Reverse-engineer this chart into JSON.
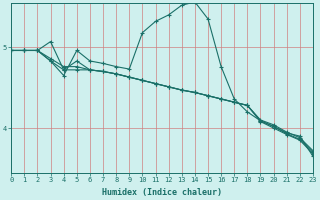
{
  "xlabel": "Humidex (Indice chaleur)",
  "bg_color": "#cff0ee",
  "line_color": "#1a7068",
  "grid_color_v": "#d08080",
  "grid_color_h": "#d08080",
  "x_ticks": [
    0,
    1,
    2,
    3,
    4,
    5,
    6,
    7,
    8,
    9,
    10,
    11,
    12,
    13,
    14,
    15,
    16,
    17,
    18,
    19,
    20,
    21,
    22,
    23
  ],
  "y_ticks": [
    4,
    5
  ],
  "ylim": [
    3.45,
    5.55
  ],
  "xlim": [
    0,
    23
  ],
  "lines": [
    [
      4.96,
      4.96,
      4.96,
      4.83,
      4.72,
      4.72,
      4.72,
      4.7,
      4.67,
      4.63,
      4.59,
      4.55,
      4.51,
      4.47,
      4.44,
      4.4,
      4.36,
      4.32,
      4.28,
      4.1,
      4.04,
      3.95,
      3.88,
      3.72
    ],
    [
      4.96,
      4.96,
      4.96,
      4.86,
      4.76,
      4.76,
      4.72,
      4.7,
      4.67,
      4.63,
      4.59,
      4.55,
      4.51,
      4.47,
      4.44,
      4.4,
      4.36,
      4.32,
      4.28,
      4.09,
      4.02,
      3.93,
      3.86,
      3.7
    ],
    [
      4.96,
      4.96,
      4.96,
      5.07,
      4.72,
      4.83,
      4.72,
      4.7,
      4.67,
      4.63,
      4.59,
      4.55,
      4.51,
      4.47,
      4.44,
      4.4,
      4.36,
      4.32,
      4.28,
      4.08,
      4.0,
      3.92,
      3.85,
      3.68
    ],
    [
      4.96,
      4.96,
      4.96,
      4.83,
      4.65,
      4.96,
      4.83,
      4.8,
      4.76,
      4.73,
      5.18,
      5.32,
      5.4,
      5.52,
      5.56,
      5.35,
      4.76,
      4.36,
      4.2,
      4.09,
      4.02,
      3.94,
      3.9,
      3.65
    ]
  ]
}
